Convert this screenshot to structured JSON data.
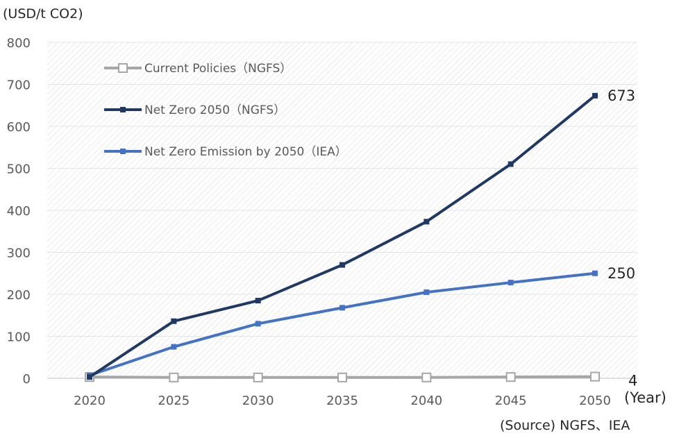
{
  "chart_data": {
    "type": "line",
    "unit_label": "(USD/t CO2)",
    "x_unit_label": "(Year)",
    "source": "(Source) NGFS、IEA",
    "x": [
      2020,
      2025,
      2030,
      2035,
      2040,
      2045,
      2050
    ],
    "x_tick_labels": [
      "2020",
      "2025",
      "2030",
      "2035",
      "2040",
      "2045",
      "2050"
    ],
    "ylim": [
      0,
      800
    ],
    "y_ticks": [
      0,
      100,
      200,
      300,
      400,
      500,
      600,
      700,
      800
    ],
    "y_tick_labels": [
      "0",
      "100",
      "200",
      "300",
      "400",
      "500",
      "600",
      "700",
      "800"
    ],
    "grid": true,
    "legend_position": "top-left",
    "series": [
      {
        "name": "Current Policies（NGFS）",
        "color": "#a6a6a6",
        "marker": "hollow-square",
        "values": [
          3,
          2,
          2,
          2,
          2,
          3,
          4
        ],
        "end_label": "4"
      },
      {
        "name": "Net Zero 2050（NGFS）",
        "color": "#203864",
        "marker": "filled-square",
        "values": [
          3,
          136,
          185,
          270,
          373,
          510,
          673
        ],
        "end_label": "673"
      },
      {
        "name": "Net Zero Emission by 2050（IEA）",
        "color": "#4472c4",
        "marker": "filled-square",
        "values": [
          7,
          75,
          130,
          168,
          205,
          228,
          250
        ],
        "end_label": "250"
      }
    ]
  }
}
